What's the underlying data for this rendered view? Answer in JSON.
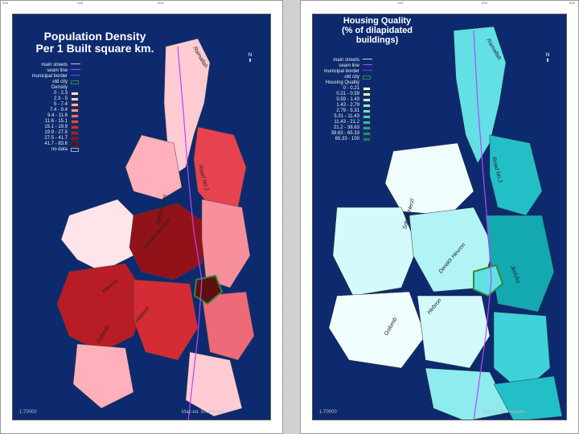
{
  "left_map": {
    "title_line1": "Population Density",
    "title_line2": "Per 1 Built square km.",
    "legend_items": [
      {
        "label": "main streets",
        "kind": "line",
        "color": "#c8c8ff"
      },
      {
        "label": "seam line",
        "kind": "line",
        "color": "#c040ff"
      },
      {
        "label": "municipal border",
        "kind": "line",
        "color": "#5050ff"
      },
      {
        "label": "old city",
        "kind": "box",
        "color": "#2e8b3e"
      }
    ],
    "legend_heading": "Density",
    "classes": [
      {
        "label": "0 - 2.3",
        "color": "#ffe4ea"
      },
      {
        "label": "2.3 - 5",
        "color": "#ffccd4"
      },
      {
        "label": "5 - 7.4",
        "color": "#ffb0bb"
      },
      {
        "label": "7.4 - 9.4",
        "color": "#f7909c"
      },
      {
        "label": "9.4 - 11.6",
        "color": "#ef6a78"
      },
      {
        "label": "11.6 - 15.1",
        "color": "#e6434f"
      },
      {
        "label": "15.1 - 19.9",
        "color": "#d42b35"
      },
      {
        "label": "19.9 - 27.5",
        "color": "#b81c24"
      },
      {
        "label": "27.5 - 41.7",
        "color": "#92121a"
      },
      {
        "label": "41.7 - 83.6",
        "color": "#6a0a10"
      }
    ],
    "no_data_label": "no data",
    "scale": "1:70000",
    "credit": "Map ed. Sh. Hazam",
    "streets": [
      "Ramallah",
      "Road No.1",
      "Derekh Hevron",
      "Hebron",
      "Hevron",
      "Golomb",
      "Sderot Herzl"
    ]
  },
  "right_map": {
    "title_line1": "Housing Quality",
    "title_line2": "(% of dilapidated buildings)",
    "legend_items": [
      {
        "label": "main streets",
        "kind": "line",
        "color": "#c8c8ff"
      },
      {
        "label": "seam line",
        "kind": "line",
        "color": "#c040ff"
      },
      {
        "label": "municipal border",
        "kind": "line",
        "color": "#5050ff"
      },
      {
        "label": "old city",
        "kind": "box",
        "color": "#2e8b3e"
      }
    ],
    "legend_heading": "Housing Quality",
    "classes": [
      {
        "label": "0 - 0.21",
        "color": "#f0fefe"
      },
      {
        "label": "0.21 - 0.59",
        "color": "#d4fbfc"
      },
      {
        "label": "0.59 - 1.43",
        "color": "#b2f4f6"
      },
      {
        "label": "1.43 - 2.79",
        "color": "#8eecef"
      },
      {
        "label": "2.79 - 5.31",
        "color": "#62e0e5"
      },
      {
        "label": "5.31 - 11.43",
        "color": "#3fd2d8"
      },
      {
        "label": "11.43 - 21.2",
        "color": "#22bfc6"
      },
      {
        "label": "21.2 - 38.63",
        "color": "#14a8b0"
      },
      {
        "label": "38.63 - 65.33",
        "color": "#0e9097"
      },
      {
        "label": "65.33 - 100",
        "color": "#087a80"
      }
    ],
    "scale": "1:70000",
    "credit": "Map ed. Sh. Hazam",
    "streets": [
      "Ramallah",
      "Road No.1",
      "Derekh Hevron",
      "Hebron",
      "Jericho",
      "Golomb",
      "Sderot Herzl"
    ]
  },
  "north_label": "N",
  "ticks": [
    "000",
    "200",
    "000"
  ]
}
